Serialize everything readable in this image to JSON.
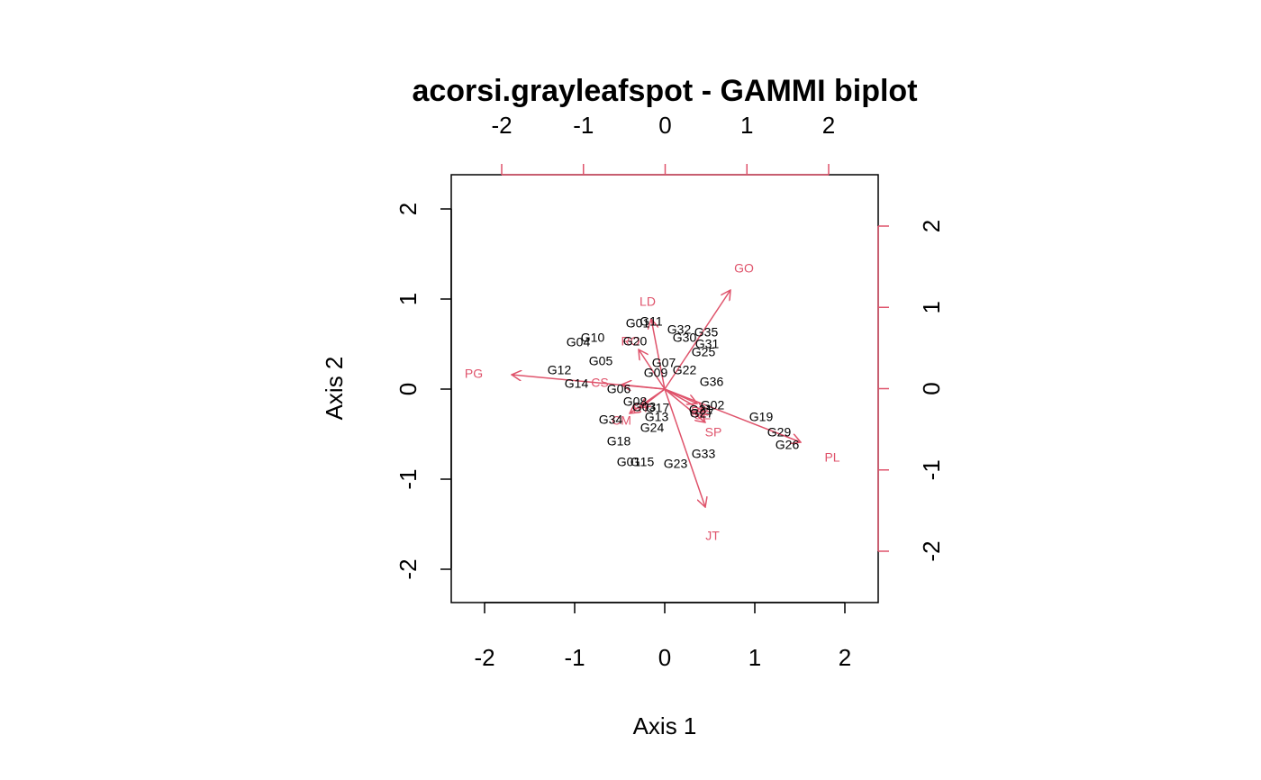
{
  "chart_data": {
    "type": "scatter",
    "title": "acorsi.grayleafspot - GAMMI biplot",
    "xlabel": "Axis 1",
    "ylabel": "Axis 2",
    "xlim": [
      -2.38,
      2.38
    ],
    "ylim": [
      -2.38,
      2.38
    ],
    "ticks": [
      "-2",
      "-1",
      "0",
      "1",
      "2"
    ],
    "upper_ticks": [
      "-2",
      "-1",
      "0",
      "1",
      "2"
    ],
    "right_ticks": [
      "-2",
      "-1",
      "0",
      "1",
      "2"
    ],
    "colors": {
      "axes": "#000000",
      "environment": "#DF536B",
      "genotype": "#000000"
    },
    "genotypes": [
      {
        "name": "G01",
        "x": -0.3,
        "y": 0.72
      },
      {
        "name": "G11",
        "x": -0.15,
        "y": 0.74
      },
      {
        "name": "G32",
        "x": 0.16,
        "y": 0.65
      },
      {
        "name": "G35",
        "x": 0.46,
        "y": 0.62
      },
      {
        "name": "G30",
        "x": 0.22,
        "y": 0.56
      },
      {
        "name": "G31",
        "x": 0.47,
        "y": 0.49
      },
      {
        "name": "G25",
        "x": 0.43,
        "y": 0.4
      },
      {
        "name": "G10",
        "x": -0.8,
        "y": 0.56
      },
      {
        "name": "G04",
        "x": -0.96,
        "y": 0.51
      },
      {
        "name": "G20",
        "x": -0.33,
        "y": 0.52
      },
      {
        "name": "G05",
        "x": -0.71,
        "y": 0.3
      },
      {
        "name": "G07",
        "x": -0.01,
        "y": 0.28
      },
      {
        "name": "G09",
        "x": -0.1,
        "y": 0.17
      },
      {
        "name": "G22",
        "x": 0.22,
        "y": 0.2
      },
      {
        "name": "G12",
        "x": -1.17,
        "y": 0.2
      },
      {
        "name": "G14",
        "x": -0.98,
        "y": 0.05
      },
      {
        "name": "G06",
        "x": -0.51,
        "y": -0.01
      },
      {
        "name": "G36",
        "x": 0.52,
        "y": 0.07
      },
      {
        "name": "G08",
        "x": -0.33,
        "y": -0.15
      },
      {
        "name": "G02",
        "x": 0.53,
        "y": -0.19
      },
      {
        "name": "G03",
        "x": -0.23,
        "y": -0.21
      },
      {
        "name": "G17",
        "x": -0.08,
        "y": -0.22
      },
      {
        "name": "G21",
        "x": 0.4,
        "y": -0.24
      },
      {
        "name": "G27",
        "x": 0.41,
        "y": -0.28
      },
      {
        "name": "G13",
        "x": -0.09,
        "y": -0.32
      },
      {
        "name": "G34",
        "x": -0.6,
        "y": -0.35
      },
      {
        "name": "G24",
        "x": -0.14,
        "y": -0.44
      },
      {
        "name": "G19",
        "x": 1.07,
        "y": -0.32
      },
      {
        "name": "G29",
        "x": 1.27,
        "y": -0.49
      },
      {
        "name": "G26",
        "x": 1.36,
        "y": -0.63
      },
      {
        "name": "G18",
        "x": -0.51,
        "y": -0.59
      },
      {
        "name": "G33",
        "x": 0.43,
        "y": -0.73
      },
      {
        "name": "G01b",
        "label": "G01",
        "x": -0.4,
        "y": -0.82
      },
      {
        "name": "G15",
        "x": -0.25,
        "y": -0.82
      },
      {
        "name": "G23",
        "x": 0.12,
        "y": -0.84
      }
    ],
    "environments": [
      {
        "name": "GO",
        "x": 0.73,
        "y": 1.1,
        "lx": 0.88,
        "ly": 1.33
      },
      {
        "name": "LD",
        "x": -0.15,
        "y": 0.78,
        "lx": -0.19,
        "ly": 0.96
      },
      {
        "name": "PG",
        "x": -1.7,
        "y": 0.16,
        "lx": -2.12,
        "ly": 0.16
      },
      {
        "name": "PL",
        "x": 1.51,
        "y": -0.59,
        "lx": 1.86,
        "ly": -0.77
      },
      {
        "name": "JT",
        "x": 0.45,
        "y": -1.31,
        "lx": 0.53,
        "ly": -1.64
      },
      {
        "name": "SP",
        "x": 0.45,
        "y": -0.37,
        "lx": 0.54,
        "ly": -0.49
      },
      {
        "name": "RO",
        "x": -0.29,
        "y": 0.44,
        "lx": -0.38,
        "ly": 0.52
      },
      {
        "name": "CS",
        "x": -0.48,
        "y": 0.05,
        "lx": -0.72,
        "ly": 0.06
      },
      {
        "name": "CM",
        "x": -0.39,
        "y": -0.27,
        "lx": -0.48,
        "ly": -0.36
      },
      {
        "name": "RT",
        "x": -0.27,
        "y": -0.21,
        "lx": -0.26,
        "ly": -0.22
      },
      {
        "name": "PR",
        "x": 0.36,
        "y": -0.16,
        "lx": 0.39,
        "ly": -0.26
      },
      {
        "name": "SE",
        "x": 0.44,
        "y": -0.25,
        "lx": 0.42,
        "ly": -0.3
      }
    ]
  }
}
